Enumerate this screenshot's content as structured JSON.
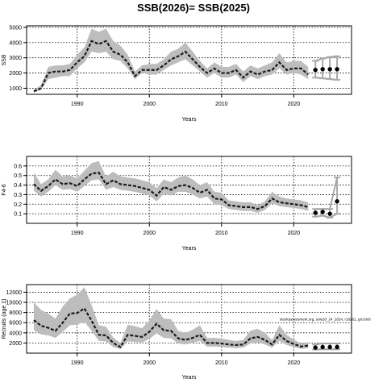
{
  "title": "SSB(2026)= SSB(2025)",
  "chart_data": [
    {
      "type": "line",
      "xlabel": "Years",
      "ylabel": "SSB",
      "xlim": [
        1983,
        2028
      ],
      "ylim": [
        600,
        5100
      ],
      "xticks": [
        1990,
        2000,
        2010,
        2020
      ],
      "yticks": [
        1000,
        2000,
        3000,
        4000,
        5000
      ],
      "grid": true,
      "years": [
        1984,
        1985,
        1986,
        1987,
        1988,
        1989,
        1990,
        1991,
        1992,
        1993,
        1994,
        1995,
        1996,
        1997,
        1998,
        1999,
        2000,
        2001,
        2002,
        2003,
        2004,
        2005,
        2006,
        2007,
        2008,
        2009,
        2010,
        2011,
        2012,
        2013,
        2014,
        2015,
        2016,
        2017,
        2018,
        2019,
        2020,
        2021,
        2022
      ],
      "estimate": [
        800,
        1000,
        2000,
        2100,
        2100,
        2200,
        2700,
        3100,
        4100,
        3900,
        4100,
        3400,
        3200,
        2700,
        1800,
        2200,
        2200,
        2200,
        2500,
        2900,
        3100,
        3400,
        2900,
        2400,
        2000,
        2300,
        2000,
        2000,
        2200,
        1700,
        2100,
        1900,
        2100,
        2200,
        2700,
        2200,
        2300,
        2300,
        1900
      ],
      "lower": [
        700,
        900,
        1600,
        1700,
        1800,
        1800,
        2300,
        2700,
        3400,
        3300,
        3400,
        2900,
        2800,
        2300,
        1600,
        2000,
        1900,
        1900,
        2200,
        2500,
        2700,
        2900,
        2500,
        2100,
        1700,
        2000,
        1700,
        1700,
        1900,
        1400,
        1800,
        1600,
        1800,
        1900,
        2300,
        1900,
        2000,
        1900,
        1600
      ],
      "upper": [
        900,
        1200,
        2400,
        2500,
        2500,
        2600,
        3200,
        3700,
        4900,
        4700,
        4900,
        4100,
        3800,
        3200,
        2100,
        2500,
        2600,
        2600,
        2900,
        3400,
        3600,
        4000,
        3400,
        2800,
        2300,
        2700,
        2400,
        2400,
        2600,
        2100,
        2500,
        2300,
        2500,
        2700,
        3300,
        2700,
        2800,
        2800,
        2400
      ],
      "forecast_years": [
        2023,
        2024,
        2025,
        2026
      ],
      "forecast_values": [
        2200,
        2250,
        2250,
        2250
      ],
      "forecast_lower": [
        1700,
        1650,
        1600,
        1550
      ],
      "forecast_upper": [
        2800,
        2950,
        3050,
        3100
      ]
    },
    {
      "type": "line",
      "xlabel": "Years",
      "ylabel": "F4-6",
      "xlim": [
        1983,
        2028
      ],
      "ylim": [
        0.0,
        0.7
      ],
      "xticks": [
        1990,
        2000,
        2010,
        2020
      ],
      "yticks": [
        0.1,
        0.2,
        0.3,
        0.4,
        0.5,
        0.6
      ],
      "grid": true,
      "years": [
        1984,
        1985,
        1986,
        1987,
        1988,
        1989,
        1990,
        1991,
        1992,
        1993,
        1994,
        1995,
        1996,
        1997,
        1998,
        1999,
        2000,
        2001,
        2002,
        2003,
        2004,
        2005,
        2006,
        2007,
        2008,
        2009,
        2010,
        2011,
        2012,
        2013,
        2014,
        2015,
        2016,
        2017,
        2018,
        2019,
        2020,
        2021,
        2022
      ],
      "estimate": [
        0.41,
        0.34,
        0.39,
        0.46,
        0.41,
        0.42,
        0.39,
        0.46,
        0.52,
        0.53,
        0.41,
        0.45,
        0.41,
        0.4,
        0.39,
        0.37,
        0.35,
        0.29,
        0.38,
        0.35,
        0.39,
        0.4,
        0.37,
        0.32,
        0.35,
        0.26,
        0.25,
        0.19,
        0.18,
        0.17,
        0.17,
        0.15,
        0.18,
        0.26,
        0.22,
        0.21,
        0.2,
        0.19,
        0.17
      ],
      "lower": [
        0.34,
        0.28,
        0.33,
        0.4,
        0.35,
        0.36,
        0.33,
        0.39,
        0.45,
        0.46,
        0.35,
        0.38,
        0.35,
        0.34,
        0.33,
        0.31,
        0.29,
        0.23,
        0.31,
        0.29,
        0.33,
        0.33,
        0.3,
        0.26,
        0.28,
        0.2,
        0.19,
        0.15,
        0.14,
        0.13,
        0.13,
        0.11,
        0.14,
        0.21,
        0.18,
        0.17,
        0.16,
        0.15,
        0.13
      ],
      "upper": [
        0.53,
        0.41,
        0.46,
        0.56,
        0.49,
        0.5,
        0.47,
        0.55,
        0.63,
        0.65,
        0.49,
        0.54,
        0.49,
        0.48,
        0.47,
        0.45,
        0.43,
        0.37,
        0.46,
        0.43,
        0.48,
        0.5,
        0.46,
        0.4,
        0.43,
        0.33,
        0.32,
        0.24,
        0.23,
        0.22,
        0.22,
        0.19,
        0.23,
        0.33,
        0.28,
        0.26,
        0.25,
        0.24,
        0.22
      ],
      "forecast_years": [
        2023,
        2024,
        2025,
        2026
      ],
      "forecast_values": [
        0.11,
        0.12,
        0.1,
        0.23
      ],
      "forecast_lower": [
        0.07,
        0.08,
        0.06,
        0.1
      ],
      "forecast_upper": [
        0.15,
        0.15,
        0.15,
        0.48
      ]
    },
    {
      "type": "line",
      "xlabel": "Years",
      "ylabel": "Recruits (age 1)",
      "annotation": "stockassessment.org, sole20_24_2024, r18261, git:c9c8",
      "xlim": [
        1983,
        2028
      ],
      "ylim": [
        0,
        13500
      ],
      "xticks": [
        1990,
        2000,
        2010,
        2020
      ],
      "yticks": [
        2000,
        4000,
        6000,
        8000,
        10000,
        12000
      ],
      "grid": true,
      "years": [
        1984,
        1985,
        1986,
        1987,
        1988,
        1989,
        1990,
        1991,
        1992,
        1993,
        1994,
        1995,
        1996,
        1997,
        1998,
        1999,
        2000,
        2001,
        2002,
        2003,
        2004,
        2005,
        2006,
        2007,
        2008,
        2009,
        2010,
        2011,
        2012,
        2013,
        2014,
        2015,
        2016,
        2017,
        2018,
        2019,
        2020,
        2021,
        2022
      ],
      "estimate": [
        6500,
        5400,
        5000,
        4400,
        6000,
        7800,
        7900,
        8800,
        6400,
        3600,
        3500,
        2000,
        1200,
        3600,
        3400,
        3200,
        4200,
        5800,
        4500,
        4400,
        2900,
        2600,
        3000,
        3600,
        2000,
        2000,
        1900,
        1700,
        1600,
        1700,
        2900,
        3200,
        2600,
        1700,
        3600,
        2400,
        1800,
        1300,
        1500
      ],
      "lower": [
        4500,
        3700,
        3500,
        3000,
        4200,
        5500,
        5600,
        6200,
        4400,
        2400,
        2300,
        1200,
        800,
        2300,
        2200,
        2100,
        2800,
        3900,
        3000,
        2900,
        1900,
        1700,
        2000,
        2400,
        1300,
        1300,
        1200,
        1100,
        1000,
        1100,
        1900,
        2100,
        1700,
        1100,
        2400,
        1600,
        1200,
        850,
        1000
      ],
      "upper": [
        10000,
        8500,
        7800,
        6800,
        9200,
        10800,
        11500,
        13000,
        9500,
        5500,
        5200,
        3100,
        2000,
        5600,
        5300,
        4900,
        6500,
        8700,
        6800,
        6700,
        4400,
        4000,
        4600,
        5500,
        3000,
        3000,
        2900,
        2600,
        2400,
        2600,
        4400,
        4800,
        4000,
        2600,
        5500,
        3600,
        2700,
        1900,
        2200
      ],
      "forecast_years": [
        2023,
        2024,
        2025,
        2026
      ],
      "forecast_values": [
        1100,
        1200,
        1200,
        1200
      ],
      "forecast_lower": [
        700,
        750,
        750,
        750
      ],
      "forecast_upper": [
        1700,
        1900,
        1900,
        1900
      ]
    }
  ]
}
